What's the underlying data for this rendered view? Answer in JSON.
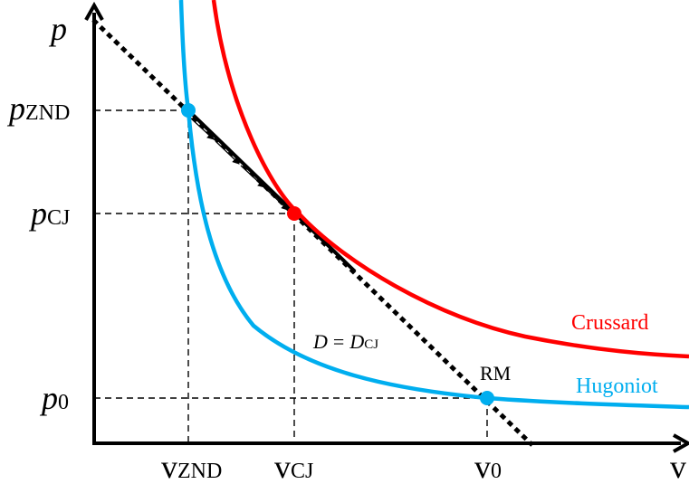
{
  "axes": {
    "y_symbol": "p",
    "x_symbol": "v"
  },
  "pressure_labels": {
    "znd": {
      "main": "p",
      "sub": "ZND"
    },
    "cj": {
      "main": "p",
      "sub": "CJ"
    },
    "zero": {
      "main": "p",
      "sub": "0"
    }
  },
  "volume_labels": {
    "znd": {
      "main": "v",
      "sub": "ZND"
    },
    "cj": {
      "main": "v",
      "sub": "CJ"
    },
    "zero": {
      "main": "v",
      "sub": "0"
    }
  },
  "curves": {
    "crussard": {
      "label": "Crussard",
      "color": "#ff0000"
    },
    "hugoniot": {
      "label": "Hugoniot",
      "color": "#00aeef"
    }
  },
  "points": {
    "rm_label": "RM"
  },
  "rayleigh": {
    "lhs": "D",
    "equals": "=",
    "rhs_main": "D",
    "rhs_sub": "CJ"
  }
}
